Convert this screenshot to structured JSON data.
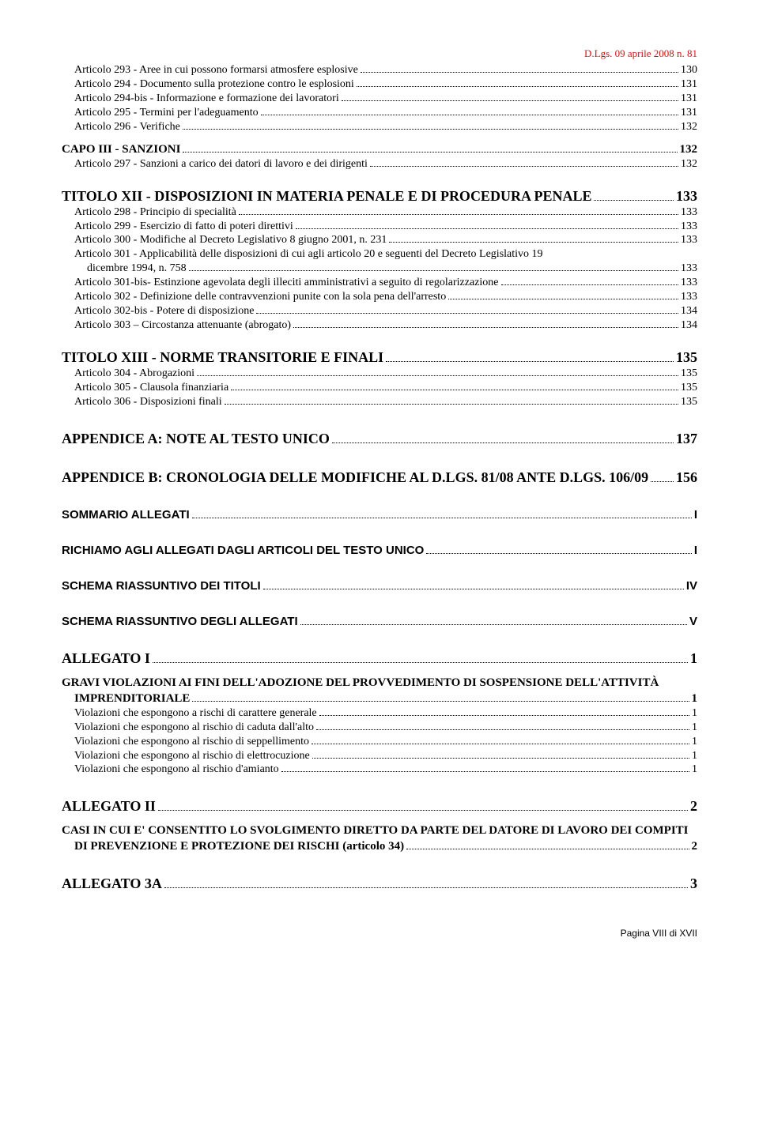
{
  "header_right_color": "#d01515",
  "header_right_text": "D.Lgs. 09 aprile 2008 n. 81",
  "footer_text": "Pagina VIII di XVII",
  "entries": [
    {
      "type": "line",
      "label": "Articolo 293 - Aree in cui possono formarsi atmosfere esplosive",
      "page": "130",
      "indent": 1
    },
    {
      "type": "line",
      "label": "Articolo 294 - Documento sulla protezione contro le esplosioni",
      "page": "131",
      "indent": 1
    },
    {
      "type": "line",
      "label": "Articolo 294-bis - Informazione e formazione dei lavoratori",
      "page": "131",
      "indent": 1
    },
    {
      "type": "line",
      "label": "Articolo 295 - Termini per l'adeguamento",
      "page": "131",
      "indent": 1
    },
    {
      "type": "line",
      "label": "Articolo 296 - Verifiche",
      "page": "132",
      "indent": 1
    },
    {
      "type": "spacer",
      "size": "sm"
    },
    {
      "type": "line",
      "label": "CAPO III - SANZIONI",
      "page": "132",
      "indent": 0,
      "bold": true,
      "size": "section-title2"
    },
    {
      "type": "line",
      "label": "Articolo 297 - Sanzioni a carico dei datori di lavoro e dei dirigenti",
      "page": "132",
      "indent": 1
    },
    {
      "type": "spacer",
      "size": "md"
    },
    {
      "type": "line",
      "label": "TITOLO XII - DISPOSIZIONI IN MATERIA PENALE E DI PROCEDURA PENALE",
      "page": "133",
      "indent": 0,
      "bold": true,
      "size": "section-title"
    },
    {
      "type": "line",
      "label": "Articolo 298 - Principio di specialità",
      "page": "133",
      "indent": 1
    },
    {
      "type": "line",
      "label": "Articolo 299 - Esercizio di fatto di poteri direttivi",
      "page": "133",
      "indent": 1
    },
    {
      "type": "line",
      "label": "Articolo 300 - Modifiche al Decreto Legislativo 8 giugno 2001, n. 231",
      "page": "133",
      "indent": 1
    },
    {
      "type": "multiline",
      "label": "Articolo 301 - Applicabilità delle disposizioni di cui agli articolo 20 e seguenti del Decreto Legislativo 19 dicembre 1994, n. 758",
      "page": "133",
      "indent": 1,
      "wrap_at": 114
    },
    {
      "type": "line",
      "label": "Articolo 301-bis- Estinzione agevolata degli illeciti amministrativi a seguito di regolarizzazione",
      "page": "133",
      "indent": 1
    },
    {
      "type": "line",
      "label": "Articolo 302 - Definizione delle contravvenzioni punite con la sola pena dell'arresto",
      "page": "133",
      "indent": 1
    },
    {
      "type": "line",
      "label": "Articolo 302-bis - Potere di disposizione",
      "page": "134",
      "indent": 1
    },
    {
      "type": "line",
      "label": "Articolo 303 – Circostanza attenuante (abrogato)",
      "page": "134",
      "indent": 1
    },
    {
      "type": "spacer",
      "size": "md"
    },
    {
      "type": "line",
      "label": "TITOLO XIII - NORME TRANSITORIE E FINALI",
      "page": "135",
      "indent": 0,
      "bold": true,
      "size": "section-title"
    },
    {
      "type": "line",
      "label": "Articolo 304 - Abrogazioni",
      "page": "135",
      "indent": 1
    },
    {
      "type": "line",
      "label": "Articolo 305 - Clausola finanziaria",
      "page": "135",
      "indent": 1
    },
    {
      "type": "line",
      "label": "Articolo 306 - Disposizioni finali",
      "page": "135",
      "indent": 1
    },
    {
      "type": "spacer",
      "size": "lg"
    },
    {
      "type": "line",
      "label": "APPENDICE A: NOTE AL TESTO UNICO",
      "page": "137",
      "indent": 0,
      "bold": true,
      "size": "section-title"
    },
    {
      "type": "spacer",
      "size": "lg"
    },
    {
      "type": "multiline",
      "label": "APPENDICE B: CRONOLOGIA DELLE MODIFICHE AL D.LGS. 81/08 ANTE D.LGS. 106/09",
      "page": "156",
      "indent": 0,
      "bold": true,
      "size": "section-title",
      "wrap_at": 78,
      "leading_dots_second": true
    },
    {
      "type": "spacer",
      "size": "lg"
    },
    {
      "type": "line",
      "label": "SOMMARIO ALLEGATI",
      "page": "I",
      "indent": 0,
      "bold": true,
      "size": "section-arial"
    },
    {
      "type": "spacer",
      "size": "lg"
    },
    {
      "type": "line",
      "label": "RICHIAMO AGLI ALLEGATI DAGLI ARTICOLI DEL TESTO UNICO",
      "page": "I",
      "indent": 0,
      "bold": true,
      "size": "section-arial"
    },
    {
      "type": "spacer",
      "size": "lg"
    },
    {
      "type": "line",
      "label": "SCHEMA RIASSUNTIVO DEI TITOLI",
      "page": "IV",
      "indent": 0,
      "bold": true,
      "size": "section-arial"
    },
    {
      "type": "spacer",
      "size": "lg"
    },
    {
      "type": "line",
      "label": "SCHEMA RIASSUNTIVO DEGLI ALLEGATI",
      "page": "V",
      "indent": 0,
      "bold": true,
      "size": "section-arial"
    },
    {
      "type": "spacer",
      "size": "lg"
    },
    {
      "type": "line",
      "label": "ALLEGATO I",
      "page": "1",
      "indent": 0,
      "bold": true,
      "size": "section-title"
    },
    {
      "type": "spacer",
      "size": "sm"
    },
    {
      "type": "multiline",
      "label": "GRAVI VIOLAZIONI AI FINI DELL'ADOZIONE DEL PROVVEDIMENTO DI SOSPENSIONE DELL'ATTIVITÀ IMPRENDITORIALE",
      "page": "1",
      "indent": 0,
      "bold": true,
      "size": "section-title2",
      "wrap_at": 96
    },
    {
      "type": "line",
      "label": "Violazioni che espongono a rischi di carattere generale",
      "page": "1",
      "indent": 1
    },
    {
      "type": "line",
      "label": "Violazioni che espongono al rischio di caduta dall'alto",
      "page": "1",
      "indent": 1
    },
    {
      "type": "line",
      "label": "Violazioni che espongono al rischio di seppellimento",
      "page": "1",
      "indent": 1
    },
    {
      "type": "line",
      "label": "Violazioni che espongono al rischio di elettrocuzione",
      "page": "1",
      "indent": 1
    },
    {
      "type": "line",
      "label": "Violazioni che espongono al rischio d'amianto",
      "page": "1",
      "indent": 1
    },
    {
      "type": "spacer",
      "size": "lg"
    },
    {
      "type": "line",
      "label": "ALLEGATO II",
      "page": "2",
      "indent": 0,
      "bold": true,
      "size": "section-title"
    },
    {
      "type": "spacer",
      "size": "sm"
    },
    {
      "type": "multiline",
      "label": "CASI IN CUI E' CONSENTITO LO SVOLGIMENTO DIRETTO DA PARTE DEL DATORE DI LAVORO DEI COMPITI DI PREVENZIONE E PROTEZIONE DEI RISCHI (articolo 34)",
      "page": "2",
      "indent": 0,
      "bold": true,
      "size": "section-title2",
      "wrap_at": 92
    },
    {
      "type": "spacer",
      "size": "lg"
    },
    {
      "type": "line",
      "label": "ALLEGATO 3A",
      "page": "3",
      "indent": 0,
      "bold": true,
      "size": "section-title"
    }
  ]
}
